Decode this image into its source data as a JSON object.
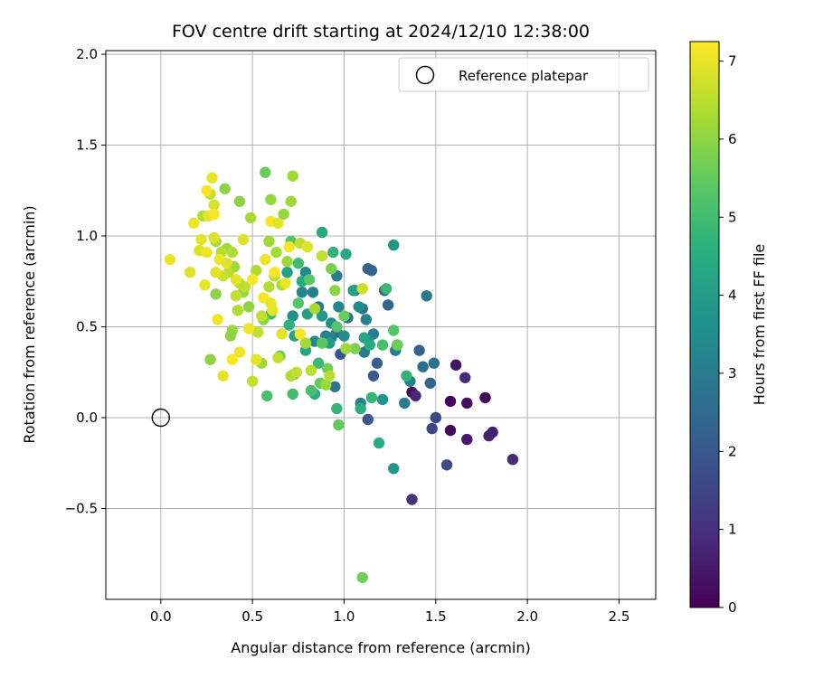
{
  "chart_data": {
    "type": "scatter",
    "title": "FOV centre drift starting at 2024/12/10 12:38:00",
    "xlabel": "Angular distance from reference (arcmin)",
    "ylabel": "Rotation from reference (arcmin)",
    "xlim": [
      -0.3,
      2.7
    ],
    "ylim": [
      -1.0,
      2.02
    ],
    "xticks": [
      0.0,
      0.5,
      1.0,
      1.5,
      2.0,
      2.5
    ],
    "xtick_labels": [
      "0.0",
      "0.5",
      "1.0",
      "1.5",
      "2.0",
      "2.5"
    ],
    "yticks": [
      -0.5,
      0.0,
      0.5,
      1.0,
      1.5,
      2.0
    ],
    "ytick_labels": [
      "−0.5",
      "0.0",
      "0.5",
      "1.0",
      "1.5",
      "2.0"
    ],
    "grid": true,
    "legend": {
      "placement": "upper right",
      "entries": [
        "Reference platepar"
      ]
    },
    "reference_point": {
      "x": 0.0,
      "y": 0.0
    },
    "colorbar": {
      "label": "Hours from first FF file",
      "range": [
        0,
        7.25
      ],
      "ticks": [
        0,
        1,
        2,
        3,
        4,
        5,
        6,
        7
      ],
      "tick_labels": [
        "0",
        "1",
        "2",
        "3",
        "4",
        "5",
        "6",
        "7"
      ],
      "colormap": "viridis"
    },
    "points": [
      [
        1.77,
        0.11,
        0.0
      ],
      [
        1.58,
        0.09,
        0.1
      ],
      [
        1.67,
        0.08,
        0.3
      ],
      [
        1.61,
        0.29,
        0.4
      ],
      [
        1.58,
        -0.07,
        0.2
      ],
      [
        1.67,
        -0.12,
        0.5
      ],
      [
        1.81,
        -0.08,
        0.6
      ],
      [
        1.79,
        -0.1,
        0.7
      ],
      [
        1.92,
        -0.23,
        0.9
      ],
      [
        1.66,
        0.22,
        0.9
      ],
      [
        1.37,
        0.14,
        0.2
      ],
      [
        1.39,
        0.12,
        0.8
      ],
      [
        1.37,
        -0.45,
        1.1
      ],
      [
        1.5,
        0.0,
        1.6
      ],
      [
        1.56,
        -0.26,
        1.7
      ],
      [
        1.48,
        -0.06,
        1.5
      ],
      [
        1.47,
        0.19,
        2.4
      ],
      [
        1.43,
        0.28,
        2.6
      ],
      [
        1.41,
        0.37,
        2.3
      ],
      [
        1.49,
        0.3,
        2.7
      ],
      [
        1.45,
        0.67,
        2.9
      ],
      [
        1.36,
        0.2,
        3.2
      ],
      [
        1.33,
        0.08,
        3.0
      ],
      [
        1.29,
        0.4,
        2.6
      ],
      [
        1.28,
        0.37,
        3.0
      ],
      [
        1.24,
        0.62,
        2.4
      ],
      [
        1.22,
        0.7,
        2.5
      ],
      [
        1.18,
        0.3,
        2.2
      ],
      [
        1.16,
        0.23,
        2.1
      ],
      [
        1.15,
        0.81,
        2.4
      ],
      [
        1.13,
        0.82,
        2.3
      ],
      [
        1.13,
        -0.01,
        2.0
      ],
      [
        1.11,
        0.36,
        3.0
      ],
      [
        1.1,
        0.6,
        2.7
      ],
      [
        1.06,
        0.7,
        2.3
      ],
      [
        1.02,
        0.55,
        2.8
      ],
      [
        0.98,
        0.35,
        1.9
      ],
      [
        0.96,
        0.47,
        2.5
      ],
      [
        0.95,
        0.17,
        2.8
      ],
      [
        0.93,
        0.44,
        3.2
      ],
      [
        0.96,
        0.78,
        3.0
      ],
      [
        0.83,
        0.69,
        3.2
      ],
      [
        0.79,
        0.8,
        3.4
      ],
      [
        0.86,
        0.61,
        3.0
      ],
      [
        0.9,
        0.45,
        3.2
      ],
      [
        0.97,
        0.61,
        3.3
      ],
      [
        1.12,
        0.54,
        3.2
      ],
      [
        1.16,
        0.46,
        3.1
      ],
      [
        1.09,
        0.08,
        3.1
      ],
      [
        1.27,
        -0.28,
        3.8
      ],
      [
        1.27,
        0.95,
        3.8
      ],
      [
        1.21,
        0.1,
        3.7
      ],
      [
        1.13,
        0.43,
        3.6
      ],
      [
        1.08,
        0.61,
        3.5
      ],
      [
        1.0,
        0.45,
        3.5
      ],
      [
        0.93,
        0.52,
        3.6
      ],
      [
        0.88,
        0.56,
        3.9
      ],
      [
        0.84,
        0.42,
        3.4
      ],
      [
        0.77,
        0.69,
        3.3
      ],
      [
        0.72,
        0.56,
        3.6
      ],
      [
        1.09,
        0.05,
        4.6
      ],
      [
        1.15,
        0.11,
        4.8
      ],
      [
        1.19,
        -0.14,
        4.5
      ],
      [
        1.21,
        0.4,
        5.1
      ],
      [
        1.23,
        0.71,
        4.9
      ],
      [
        1.27,
        0.48,
        5.3
      ],
      [
        1.34,
        0.23,
        4.7
      ],
      [
        1.29,
        0.4,
        5.6
      ],
      [
        1.14,
        0.4,
        4.5
      ],
      [
        1.11,
        0.44,
        4.3
      ],
      [
        1.05,
        0.7,
        4.2
      ],
      [
        1.01,
        0.9,
        4.4
      ],
      [
        0.97,
        -0.04,
        5.5
      ],
      [
        0.96,
        0.05,
        4.8
      ],
      [
        0.94,
        0.91,
        4.7
      ],
      [
        0.92,
        0.41,
        4.1
      ],
      [
        0.88,
        1.02,
        4.5
      ],
      [
        0.86,
        0.3,
        4.9
      ],
      [
        0.84,
        0.13,
        4.6
      ],
      [
        0.82,
        0.15,
        5.1
      ],
      [
        0.8,
        0.57,
        4.2
      ],
      [
        0.79,
        0.37,
        4.4
      ],
      [
        0.77,
        0.75,
        4.5
      ],
      [
        0.73,
        0.45,
        4.2
      ],
      [
        0.72,
        0.13,
        5.0
      ],
      [
        0.73,
        0.24,
        5.2
      ],
      [
        0.75,
        0.63,
        5.3
      ],
      [
        0.7,
        0.51,
        4.7
      ],
      [
        0.69,
        0.8,
        4.1
      ],
      [
        0.65,
        0.34,
        5.5
      ],
      [
        0.6,
        0.57,
        5.0
      ],
      [
        0.58,
        0.12,
        5.1
      ],
      [
        0.57,
        1.35,
        5.6
      ],
      [
        0.71,
        0.97,
        5.3
      ],
      [
        0.75,
        0.85,
        5.0
      ],
      [
        0.81,
        0.76,
        5.4
      ],
      [
        0.87,
        0.19,
        5.5
      ],
      [
        0.88,
        0.41,
        5.4
      ],
      [
        0.91,
        0.27,
        5.7
      ],
      [
        0.93,
        0.82,
        5.8
      ],
      [
        0.96,
        0.5,
        5.3
      ],
      [
        1.0,
        0.56,
        5.6
      ],
      [
        1.06,
        0.38,
        5.8
      ],
      [
        1.1,
        -0.88,
        5.7
      ],
      [
        0.72,
        1.33,
        6.2
      ],
      [
        0.71,
        1.19,
        6.2
      ],
      [
        0.67,
        1.12,
        6.1
      ],
      [
        0.63,
        0.91,
        6.3
      ],
      [
        0.6,
        1.2,
        6.1
      ],
      [
        0.59,
        0.97,
        6.2
      ],
      [
        0.56,
        0.54,
        6.0
      ],
      [
        0.55,
        0.3,
        6.2
      ],
      [
        0.52,
        0.81,
        6.4
      ],
      [
        0.49,
        1.1,
        6.3
      ],
      [
        0.48,
        0.61,
        6.0
      ],
      [
        0.45,
        0.69,
        6.1
      ],
      [
        0.43,
        1.19,
        6.0
      ],
      [
        0.42,
        0.59,
        6.4
      ],
      [
        0.4,
        0.83,
        6.2
      ],
      [
        0.39,
        0.48,
        6.1
      ],
      [
        0.38,
        0.45,
        6.0
      ],
      [
        0.36,
        0.93,
        6.2
      ],
      [
        0.35,
        1.26,
        6.0
      ],
      [
        0.3,
        0.68,
        6.0
      ],
      [
        0.3,
        0.97,
        6.3
      ],
      [
        0.27,
        0.32,
        6.0
      ],
      [
        0.62,
        0.78,
        6.5
      ],
      [
        0.64,
        0.33,
        6.6
      ],
      [
        0.66,
        0.73,
        6.3
      ],
      [
        0.69,
        0.86,
        6.2
      ],
      [
        0.71,
        0.23,
        6.4
      ],
      [
        0.74,
        0.25,
        6.6
      ],
      [
        0.76,
        0.96,
        6.6
      ],
      [
        0.79,
        0.41,
        6.3
      ],
      [
        0.82,
        0.26,
        6.5
      ],
      [
        0.84,
        0.6,
        6.3
      ],
      [
        0.88,
        0.89,
        6.6
      ],
      [
        0.9,
        0.18,
        6.2
      ],
      [
        0.92,
        0.23,
        6.5
      ],
      [
        0.95,
        0.7,
        6.0
      ],
      [
        1.01,
        0.38,
        6.2
      ],
      [
        1.1,
        0.71,
        6.7
      ],
      [
        0.59,
        0.72,
        6.4
      ],
      [
        0.55,
        0.56,
        6.6
      ],
      [
        0.53,
        0.47,
        6.6
      ],
      [
        0.5,
        0.2,
        6.6
      ],
      [
        0.46,
        0.72,
        6.6
      ],
      [
        0.43,
        0.74,
        6.5
      ],
      [
        0.41,
        0.67,
        6.6
      ],
      [
        0.39,
        0.91,
        6.4
      ],
      [
        0.37,
        0.8,
        6.5
      ],
      [
        0.34,
        0.78,
        6.7
      ],
      [
        0.33,
        0.91,
        6.5
      ],
      [
        0.29,
        1.17,
        6.8
      ],
      [
        0.27,
        1.23,
        6.6
      ],
      [
        0.23,
        1.11,
        6.4
      ],
      [
        0.05,
        0.87,
        7.1
      ],
      [
        0.16,
        0.8,
        6.9
      ],
      [
        0.18,
        1.07,
        7.1
      ],
      [
        0.21,
        0.92,
        6.9
      ],
      [
        0.22,
        0.98,
        7.0
      ],
      [
        0.24,
        0.73,
        7.0
      ],
      [
        0.25,
        1.25,
        7.2
      ],
      [
        0.26,
        1.11,
        7.0
      ],
      [
        0.28,
        1.32,
        7.0
      ],
      [
        0.29,
        1.12,
        7.2
      ],
      [
        0.3,
        0.8,
        7.0
      ],
      [
        0.31,
        0.54,
        7.1
      ],
      [
        0.32,
        0.87,
        7.1
      ],
      [
        0.34,
        0.23,
        7.0
      ],
      [
        0.36,
        0.85,
        6.9
      ],
      [
        0.39,
        0.32,
        7.2
      ],
      [
        0.41,
        0.76,
        7.0
      ],
      [
        0.43,
        0.36,
        7.1
      ],
      [
        0.45,
        0.98,
        6.9
      ],
      [
        0.48,
        0.49,
        7.1
      ],
      [
        0.5,
        0.76,
        7.2
      ],
      [
        0.52,
        0.32,
        7.0
      ],
      [
        0.56,
        0.66,
        7.2
      ],
      [
        0.57,
        0.87,
        7.1
      ],
      [
        0.6,
        0.63,
        7.0
      ],
      [
        0.6,
        1.08,
        7.2
      ],
      [
        0.61,
        0.59,
        7.0
      ],
      [
        0.62,
        0.8,
        7.2
      ],
      [
        0.64,
        1.07,
        7.0
      ],
      [
        0.66,
        0.46,
        7.0
      ],
      [
        0.68,
        0.74,
        7.1
      ],
      [
        0.7,
        0.94,
        7.2
      ],
      [
        0.76,
        0.46,
        7.2
      ],
      [
        0.8,
        0.94,
        6.9
      ],
      [
        0.29,
        0.99,
        6.9
      ],
      [
        0.25,
        0.91,
        7.1
      ]
    ]
  }
}
